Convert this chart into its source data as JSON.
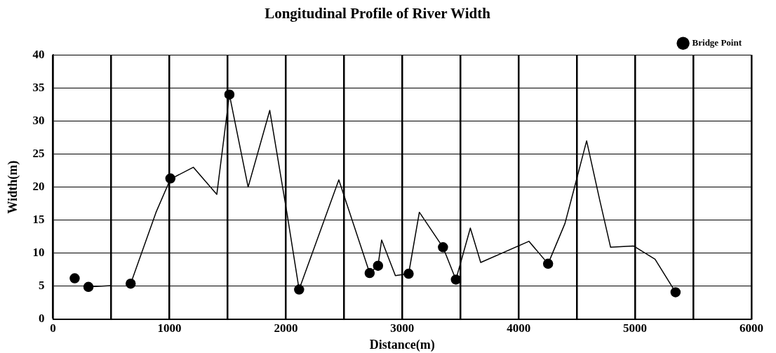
{
  "chart_data": {
    "type": "line",
    "title": "Longitudinal Profile of River Width",
    "xlabel": "Distance(m)",
    "ylabel": "Width(m)",
    "series": [
      {
        "type": "line",
        "color": "#000000",
        "marker": "none",
        "x": [
          304,
          502,
          585,
          667,
          885,
          1008,
          1205,
          1407,
          1515,
          1676,
          1862,
          2011,
          2114,
          2455,
          2720,
          2792,
          2823,
          2941,
          3055,
          3147,
          3350,
          3461,
          3585,
          3674,
          4088,
          4253,
          4398,
          4470,
          4584,
          4697,
          4790,
          4986,
          5172,
          5348
        ],
        "values": [
          4.9,
          5.1,
          null,
          5.4,
          16.2,
          21.2,
          23.0,
          18.9,
          34.0,
          20.0,
          31.6,
          15.9,
          4.5,
          21.1,
          7.0,
          8.1,
          12.0,
          6.6,
          6.9,
          16.2,
          10.9,
          6.0,
          13.8,
          8.6,
          11.8,
          8.4,
          14.5,
          19.3,
          27.0,
          18.0,
          10.9,
          11.1,
          9.1,
          4.1
        ]
      },
      {
        "type": "scatter",
        "name": "Bridge Point",
        "color": "#000000",
        "marker": "circle",
        "x": [
          186,
          304,
          667,
          1008,
          1515,
          2114,
          2720,
          2792,
          3055,
          3350,
          3461,
          4253,
          5348
        ],
        "values": [
          6.2,
          4.9,
          5.4,
          21.3,
          34.0,
          4.5,
          7.0,
          8.1,
          6.9,
          10.9,
          6.0,
          8.4,
          4.1
        ]
      }
    ],
    "xlim": [
      0,
      6000
    ],
    "xticks": [
      0,
      {
        "value": 500,
        "label": null
      },
      1000,
      {
        "value": 1500,
        "label": null
      },
      2000,
      {
        "value": 2500,
        "label": null
      },
      3000,
      {
        "value": 3500,
        "label": null
      },
      4000,
      {
        "value": 4500,
        "label": null
      },
      5000,
      {
        "value": 5500,
        "label": null
      },
      6000
    ],
    "ylim": [
      0,
      40
    ],
    "yticks": [
      0,
      5,
      10,
      15,
      20,
      25,
      30,
      35,
      40
    ],
    "grid": true,
    "legend": "top right"
  }
}
